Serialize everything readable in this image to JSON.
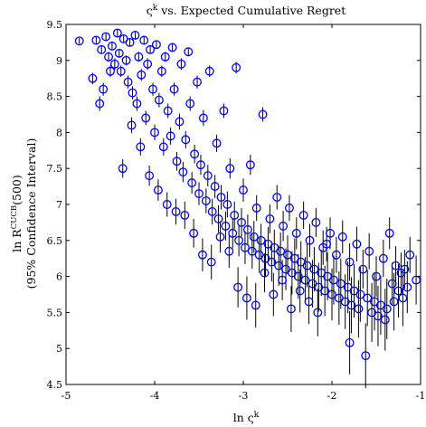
{
  "chart_data": {
    "type": "scatter",
    "title": "ς^k vs. Expected Cumulative Regret",
    "title_parts": {
      "base": "ς",
      "sup": "k",
      "rest": " vs. Expected Cumulative Regret"
    },
    "xlabel": "ln ς^k",
    "xlabel_parts": {
      "pre": "ln ",
      "base": "ς",
      "sup": "k"
    },
    "ylabel": "ln R^CUCB(500)",
    "ylabel_parts": {
      "pre": "ln ",
      "base": "R",
      "sup": "CUCB",
      "post": "(500)"
    },
    "ylabel_line2": "(95% Confidence Interval)",
    "xlim": [
      -5,
      -1
    ],
    "ylim": [
      4.5,
      9.5
    ],
    "xticks": [
      -5,
      -4,
      -3,
      -2,
      -1
    ],
    "yticks": [
      4.5,
      5,
      5.5,
      6,
      6.5,
      7,
      7.5,
      8,
      8.5,
      9,
      9.5
    ],
    "xtick_labels": [
      "-5",
      "-4",
      "-3",
      "-2",
      "-1"
    ],
    "ytick_labels": [
      "4.5",
      "5",
      "5.5",
      "6",
      "6.5",
      "7",
      "7.5",
      "8",
      "8.5",
      "9",
      "9.5"
    ],
    "marker": "open-circle",
    "marker_color": "#0000ff",
    "errorbar_color": "#000000",
    "grid": false,
    "series": [
      {
        "points": [
          [
            -4.85,
            9.27,
            0.04
          ],
          [
            -4.66,
            9.28,
            0.05
          ],
          [
            -4.6,
            9.15,
            0.06
          ],
          [
            -4.55,
            9.33,
            0.05
          ],
          [
            -4.52,
            9.05,
            0.07
          ],
          [
            -4.48,
            9.2,
            0.05
          ],
          [
            -4.45,
            8.95,
            0.08
          ],
          [
            -4.42,
            9.38,
            0.05
          ],
          [
            -4.4,
            9.1,
            0.06
          ],
          [
            -4.38,
            8.85,
            0.08
          ],
          [
            -4.35,
            9.3,
            0.05
          ],
          [
            -4.32,
            9.0,
            0.07
          ],
          [
            -4.3,
            8.7,
            0.09
          ],
          [
            -4.28,
            9.25,
            0.05
          ],
          [
            -4.25,
            8.55,
            0.09
          ],
          [
            -4.22,
            9.35,
            0.05
          ],
          [
            -4.2,
            8.4,
            0.1
          ],
          [
            -4.18,
            9.05,
            0.07
          ],
          [
            -4.15,
            8.8,
            0.08
          ],
          [
            -4.12,
            9.28,
            0.05
          ],
          [
            -4.1,
            8.2,
            0.1
          ],
          [
            -4.08,
            8.95,
            0.08
          ],
          [
            -4.05,
            9.15,
            0.06
          ],
          [
            -4.02,
            8.6,
            0.09
          ],
          [
            -4.0,
            8.0,
            0.11
          ],
          [
            -3.98,
            9.22,
            0.05
          ],
          [
            -3.95,
            8.45,
            0.1
          ],
          [
            -3.92,
            8.85,
            0.08
          ],
          [
            -3.9,
            7.8,
            0.12
          ],
          [
            -3.88,
            9.05,
            0.07
          ],
          [
            -3.85,
            8.3,
            0.1
          ],
          [
            -3.82,
            7.95,
            0.12
          ],
          [
            -3.8,
            9.18,
            0.06
          ],
          [
            -3.78,
            8.6,
            0.09
          ],
          [
            -3.75,
            7.6,
            0.13
          ],
          [
            -3.72,
            8.15,
            0.11
          ],
          [
            -3.7,
            8.95,
            0.08
          ],
          [
            -3.68,
            7.45,
            0.14
          ],
          [
            -3.65,
            7.9,
            0.12
          ],
          [
            -3.62,
            9.12,
            0.06
          ],
          [
            -3.6,
            8.4,
            0.1
          ],
          [
            -3.58,
            7.3,
            0.15
          ],
          [
            -3.55,
            7.7,
            0.13
          ],
          [
            -3.52,
            8.7,
            0.09
          ],
          [
            -3.5,
            7.15,
            0.16
          ],
          [
            -3.48,
            7.55,
            0.14
          ],
          [
            -3.45,
            8.2,
            0.11
          ],
          [
            -3.42,
            7.05,
            0.17
          ],
          [
            -3.4,
            7.4,
            0.15
          ],
          [
            -3.38,
            8.85,
            0.08
          ],
          [
            -3.35,
            6.9,
            0.18
          ],
          [
            -3.32,
            7.25,
            0.16
          ],
          [
            -3.3,
            7.85,
            0.12
          ],
          [
            -3.28,
            6.8,
            0.19
          ],
          [
            -3.25,
            7.1,
            0.17
          ],
          [
            -3.22,
            8.3,
            0.1
          ],
          [
            -3.2,
            6.7,
            0.2
          ],
          [
            -3.18,
            7.0,
            0.18
          ],
          [
            -3.15,
            7.5,
            0.14
          ],
          [
            -3.12,
            6.6,
            0.21
          ],
          [
            -3.1,
            6.85,
            0.19
          ],
          [
            -3.08,
            8.9,
            0.08
          ],
          [
            -3.05,
            6.5,
            0.22
          ],
          [
            -3.02,
            6.75,
            0.2
          ],
          [
            -3.0,
            7.2,
            0.16
          ],
          [
            -2.98,
            6.4,
            0.23
          ],
          [
            -2.95,
            6.65,
            0.21
          ],
          [
            -2.92,
            7.55,
            0.14
          ],
          [
            -2.9,
            6.35,
            0.24
          ],
          [
            -2.88,
            6.55,
            0.22
          ],
          [
            -2.85,
            6.95,
            0.18
          ],
          [
            -2.82,
            6.3,
            0.25
          ],
          [
            -2.8,
            6.5,
            0.23
          ],
          [
            -2.78,
            8.25,
            0.1
          ],
          [
            -2.75,
            6.25,
            0.26
          ],
          [
            -2.72,
            6.45,
            0.24
          ],
          [
            -2.7,
            6.8,
            0.2
          ],
          [
            -2.68,
            6.2,
            0.27
          ],
          [
            -2.65,
            6.4,
            0.25
          ],
          [
            -2.62,
            7.1,
            0.17
          ],
          [
            -2.6,
            6.15,
            0.28
          ],
          [
            -2.58,
            6.35,
            0.26
          ],
          [
            -2.55,
            6.7,
            0.21
          ],
          [
            -2.52,
            6.1,
            0.29
          ],
          [
            -2.5,
            6.3,
            0.27
          ],
          [
            -2.48,
            6.95,
            0.18
          ],
          [
            -2.45,
            6.05,
            0.3
          ],
          [
            -2.42,
            6.25,
            0.28
          ],
          [
            -2.4,
            6.6,
            0.22
          ],
          [
            -2.38,
            6.0,
            0.31
          ],
          [
            -2.35,
            6.2,
            0.29
          ],
          [
            -2.32,
            6.85,
            0.19
          ],
          [
            -2.3,
            5.95,
            0.32
          ],
          [
            -2.28,
            6.15,
            0.3
          ],
          [
            -2.25,
            6.5,
            0.23
          ],
          [
            -2.22,
            5.9,
            0.33
          ],
          [
            -2.2,
            6.1,
            0.31
          ],
          [
            -2.18,
            6.75,
            0.2
          ],
          [
            -2.15,
            5.85,
            0.34
          ],
          [
            -2.12,
            6.05,
            0.32
          ],
          [
            -2.1,
            6.4,
            0.24
          ],
          [
            -2.08,
            5.8,
            0.35
          ],
          [
            -2.05,
            6.0,
            0.33
          ],
          [
            -2.02,
            6.6,
            0.22
          ],
          [
            -2.0,
            5.75,
            0.36
          ],
          [
            -1.98,
            5.95,
            0.34
          ],
          [
            -1.95,
            6.3,
            0.25
          ],
          [
            -1.92,
            5.7,
            0.37
          ],
          [
            -1.9,
            5.9,
            0.35
          ],
          [
            -1.88,
            6.55,
            0.23
          ],
          [
            -1.85,
            5.65,
            0.38
          ],
          [
            -1.82,
            5.85,
            0.36
          ],
          [
            -1.8,
            6.2,
            0.26
          ],
          [
            -1.78,
            5.6,
            0.39
          ],
          [
            -1.75,
            5.8,
            0.37
          ],
          [
            -1.72,
            6.45,
            0.24
          ],
          [
            -1.7,
            5.55,
            0.4
          ],
          [
            -1.68,
            5.75,
            0.38
          ],
          [
            -1.65,
            6.1,
            0.27
          ],
          [
            -1.62,
            4.9,
            0.45
          ],
          [
            -1.6,
            5.7,
            0.39
          ],
          [
            -1.58,
            6.35,
            0.25
          ],
          [
            -1.55,
            5.5,
            0.41
          ],
          [
            -1.52,
            5.65,
            0.4
          ],
          [
            -1.5,
            6.0,
            0.28
          ],
          [
            -1.48,
            5.45,
            0.42
          ],
          [
            -1.45,
            5.6,
            0.41
          ],
          [
            -1.42,
            6.25,
            0.26
          ],
          [
            -1.4,
            5.4,
            0.43
          ],
          [
            -1.38,
            5.55,
            0.42
          ],
          [
            -1.35,
            6.6,
            0.22
          ],
          [
            -1.32,
            5.9,
            0.29
          ],
          [
            -1.3,
            5.65,
            0.4
          ],
          [
            -1.28,
            6.15,
            0.27
          ],
          [
            -1.25,
            5.8,
            0.37
          ],
          [
            -1.22,
            6.05,
            0.28
          ],
          [
            -1.2,
            5.7,
            0.39
          ],
          [
            -1.18,
            6.1,
            0.27
          ],
          [
            -1.15,
            5.85,
            0.36
          ],
          [
            -1.12,
            6.3,
            0.25
          ],
          [
            -1.8,
            5.08,
            0.44
          ],
          [
            -1.05,
            5.95,
            0.34
          ],
          [
            -4.7,
            8.75,
            0.08
          ],
          [
            -4.62,
            8.4,
            0.1
          ],
          [
            -4.58,
            8.6,
            0.09
          ],
          [
            -4.5,
            8.85,
            0.08
          ],
          [
            -4.36,
            7.5,
            0.13
          ],
          [
            -4.26,
            8.1,
            0.11
          ],
          [
            -4.16,
            7.8,
            0.12
          ],
          [
            -4.06,
            7.4,
            0.14
          ],
          [
            -3.96,
            7.2,
            0.15
          ],
          [
            -3.86,
            7.0,
            0.17
          ],
          [
            -3.76,
            6.9,
            0.18
          ],
          [
            -3.66,
            6.85,
            0.19
          ],
          [
            -3.56,
            6.6,
            0.2
          ],
          [
            -3.46,
            6.3,
            0.23
          ],
          [
            -3.36,
            6.2,
            0.24
          ],
          [
            -3.26,
            6.55,
            0.22
          ],
          [
            -3.16,
            6.35,
            0.23
          ],
          [
            -3.06,
            5.85,
            0.28
          ],
          [
            -2.96,
            5.7,
            0.3
          ],
          [
            -2.86,
            5.6,
            0.31
          ],
          [
            -2.76,
            6.05,
            0.27
          ],
          [
            -2.66,
            5.75,
            0.3
          ],
          [
            -2.56,
            5.95,
            0.28
          ],
          [
            -2.46,
            5.55,
            0.32
          ],
          [
            -2.36,
            5.8,
            0.3
          ],
          [
            -2.26,
            5.65,
            0.31
          ],
          [
            -2.16,
            5.5,
            0.33
          ],
          [
            -2.06,
            6.45,
            0.24
          ]
        ]
      }
    ]
  }
}
